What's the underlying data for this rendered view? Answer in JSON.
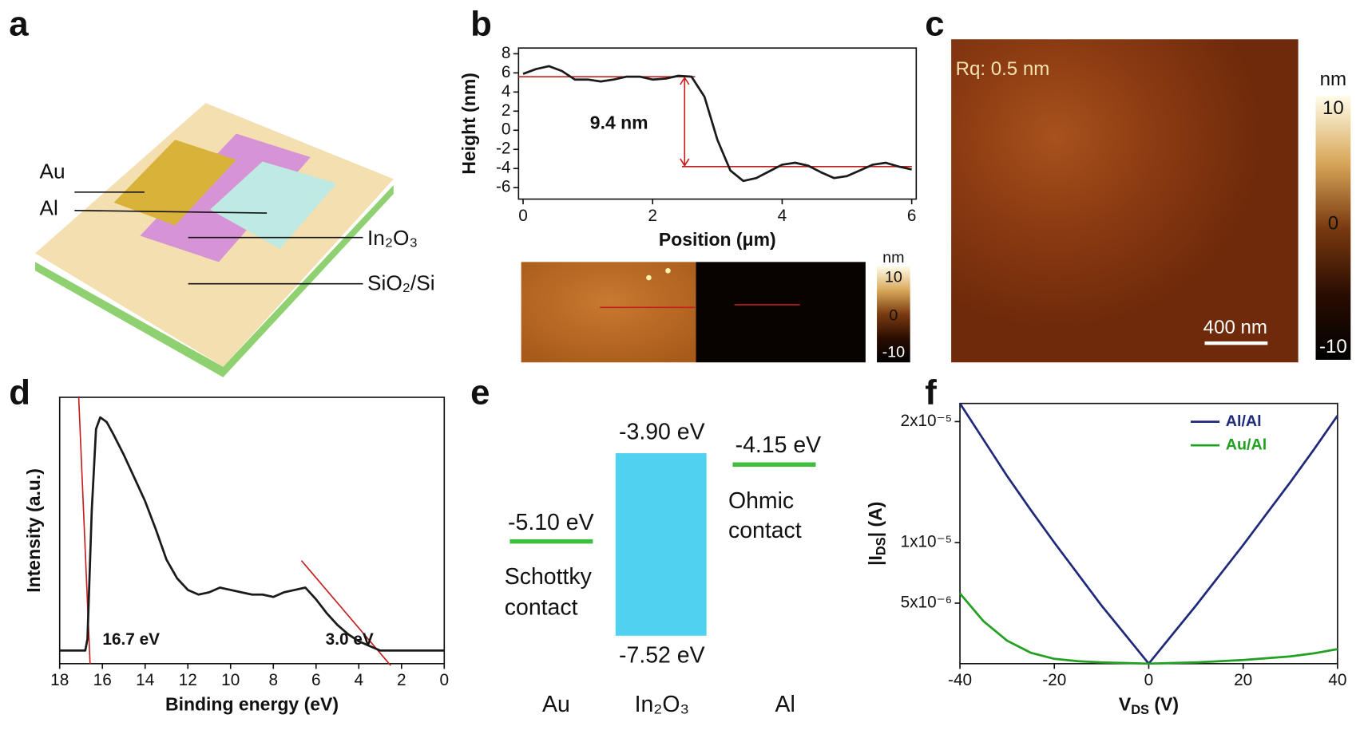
{
  "panel_labels": [
    "a",
    "b",
    "c",
    "d",
    "e",
    "f"
  ],
  "device": {
    "labels": [
      "Au",
      "Al",
      "In₂O₃",
      "SiO₂/Si"
    ]
  },
  "afm_b": {
    "colorbar_unit": "nm",
    "colorbar_ticks": [
      "10",
      "0",
      "-10"
    ]
  },
  "afm_c": {
    "annotation": "Rq:  0.5 nm",
    "scale_bar": "400 nm",
    "colorbar_unit": "nm",
    "colorbar_ticks": [
      "10",
      "0",
      "-10"
    ]
  },
  "band_diagram": {
    "au_level": "-5.10 eV",
    "au_contact": [
      "Schottky",
      "contact"
    ],
    "in2o3_top": "-3.90 eV",
    "in2o3_bottom": "-7.52 eV",
    "al_level": "-4.15 eV",
    "al_contact": [
      "Ohmic",
      "contact"
    ],
    "materials": [
      "Au",
      "In₂O₃",
      "Al"
    ]
  },
  "chart_data": [
    {
      "type": "line",
      "xlabel": "Position (μm)",
      "ylabel": "Height (nm)",
      "annotation": "9.4 nm",
      "xlim": [
        -0.07,
        6.07
      ],
      "ylim": [
        -7.2,
        8.6
      ],
      "xticks": [
        0,
        2,
        4,
        6
      ],
      "yticks": [
        -6,
        -4,
        -2,
        0,
        2,
        4,
        6,
        8
      ],
      "reference_lines": [
        5.6,
        -3.8
      ],
      "x": [
        0,
        0.2,
        0.4,
        0.6,
        0.8,
        1.0,
        1.2,
        1.4,
        1.6,
        1.8,
        2.0,
        2.2,
        2.4,
        2.6,
        2.8,
        3.0,
        3.2,
        3.4,
        3.6,
        3.8,
        4.0,
        4.2,
        4.4,
        4.6,
        4.8,
        5.0,
        5.2,
        5.4,
        5.6,
        5.8,
        6.0
      ],
      "series": [
        {
          "name": "height",
          "color": "#1a1a1a",
          "values": [
            5.9,
            6.4,
            6.7,
            6.2,
            5.3,
            5.3,
            5.1,
            5.3,
            5.6,
            5.6,
            5.3,
            5.4,
            5.7,
            5.6,
            3.5,
            -1.0,
            -4.2,
            -5.3,
            -5.0,
            -4.3,
            -3.6,
            -3.4,
            -3.7,
            -4.4,
            -5.0,
            -4.8,
            -4.2,
            -3.6,
            -3.4,
            -3.8,
            -4.1
          ]
        }
      ]
    },
    {
      "type": "line",
      "xlabel": "Binding energy (eV)",
      "ylabel": "Intensity (a.u.)",
      "xlim": [
        18,
        0
      ],
      "ylim": [
        -0.056,
        1.086
      ],
      "xticks": [
        18,
        16,
        14,
        12,
        10,
        8,
        6,
        4,
        2,
        0
      ],
      "annotations": [
        {
          "value": 16.7,
          "label": "16.7 eV"
        },
        {
          "value": 3.0,
          "label": "3.0 eV"
        }
      ],
      "x": [
        18,
        17,
        16.8,
        16.7,
        16.5,
        16.3,
        16.1,
        15.8,
        15.5,
        15,
        14.5,
        14,
        13.5,
        13,
        12.5,
        12,
        11.5,
        11,
        10.5,
        10,
        9.5,
        9,
        8.5,
        8,
        7.5,
        7,
        6.5,
        6,
        5.5,
        5,
        4.5,
        4,
        3.5,
        3,
        2.5,
        0
      ],
      "series": [
        {
          "name": "intensity",
          "color": "#1a1a1a",
          "values": [
            0,
            0,
            0,
            0.05,
            0.6,
            0.95,
            1.0,
            0.98,
            0.93,
            0.84,
            0.74,
            0.64,
            0.52,
            0.39,
            0.31,
            0.26,
            0.24,
            0.25,
            0.27,
            0.26,
            0.25,
            0.24,
            0.24,
            0.23,
            0.25,
            0.26,
            0.27,
            0.22,
            0.16,
            0.11,
            0.07,
            0.04,
            0.02,
            0.0,
            0.0,
            0.0
          ]
        }
      ]
    },
    {
      "type": "line",
      "xlabel": [
        "V",
        "DS",
        " (V)"
      ],
      "ylabel": [
        "|I",
        "DS",
        "| (A)"
      ],
      "xlim": [
        -40,
        40
      ],
      "ylim": [
        0,
        2.15e-05
      ],
      "xticks": [
        -40,
        -20,
        0,
        20,
        40
      ],
      "yticks": [
        {
          "value": 5e-06,
          "label": "5x10⁻⁶"
        },
        {
          "value": 1e-05,
          "label": "1x10⁻⁵"
        },
        {
          "value": 2e-05,
          "label": "2x10⁻⁵"
        }
      ],
      "legend": "upper right",
      "x": [
        -40,
        -35,
        -30,
        -25,
        -20,
        -15,
        -10,
        -5,
        0,
        5,
        10,
        15,
        20,
        25,
        30,
        35,
        40
      ],
      "series": [
        {
          "name": "Al/Al",
          "color": "#1f2a7a",
          "values": [
            2.15e-05,
            1.85e-05,
            1.55e-05,
            1.27e-05,
            1e-05,
            7.4e-06,
            4.8e-06,
            2.4e-06,
            0,
            2.4e-06,
            4.8e-06,
            7.3e-06,
            9.8e-06,
            1.24e-05,
            1.5e-05,
            1.77e-05,
            2.05e-05
          ]
        },
        {
          "name": "Au/Al",
          "color": "#22a022",
          "values": [
            5.8e-06,
            3.5e-06,
            1.9e-06,
            9e-07,
            4e-07,
            2e-07,
            1e-07,
            5e-08,
            0,
            5e-08,
            1e-07,
            2e-07,
            3e-07,
            4.5e-07,
            6e-07,
            8.5e-07,
            1.2e-06
          ]
        }
      ]
    }
  ]
}
